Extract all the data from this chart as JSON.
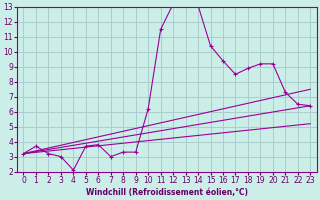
{
  "xlabel": "Windchill (Refroidissement éolien,°C)",
  "background_color": "#cceee8",
  "grid_color": "#aacccc",
  "line_color": "#990099",
  "marker": "+",
  "xlim": [
    -0.5,
    23.5
  ],
  "ylim": [
    2,
    13
  ],
  "xticks": [
    0,
    1,
    2,
    3,
    4,
    5,
    6,
    7,
    8,
    9,
    10,
    11,
    12,
    13,
    14,
    15,
    16,
    17,
    18,
    19,
    20,
    21,
    22,
    23
  ],
  "yticks": [
    2,
    3,
    4,
    5,
    6,
    7,
    8,
    9,
    10,
    11,
    12,
    13
  ],
  "series": [
    {
      "x": [
        0,
        1,
        2,
        3,
        4,
        5,
        6,
        7,
        8,
        9,
        10,
        11,
        12,
        13,
        14,
        15,
        16,
        17,
        18,
        19,
        20,
        21,
        22,
        23
      ],
      "y": [
        3.2,
        3.7,
        3.2,
        3.0,
        2.1,
        3.7,
        3.8,
        3.0,
        3.3,
        3.3,
        6.2,
        11.5,
        13.2,
        13.3,
        13.1,
        10.4,
        9.4,
        8.5,
        8.9,
        9.2,
        9.2,
        7.3,
        6.5,
        6.4
      ],
      "has_markers": true
    },
    {
      "x": [
        0,
        23
      ],
      "y": [
        3.2,
        7.5
      ],
      "has_markers": false
    },
    {
      "x": [
        0,
        23
      ],
      "y": [
        3.2,
        5.2
      ],
      "has_markers": false
    },
    {
      "x": [
        0,
        23
      ],
      "y": [
        3.2,
        6.4
      ],
      "has_markers": false
    }
  ],
  "tick_fontsize": 5.5,
  "xlabel_fontsize": 5.5,
  "tick_color": "#660066",
  "spine_color": "#880088"
}
